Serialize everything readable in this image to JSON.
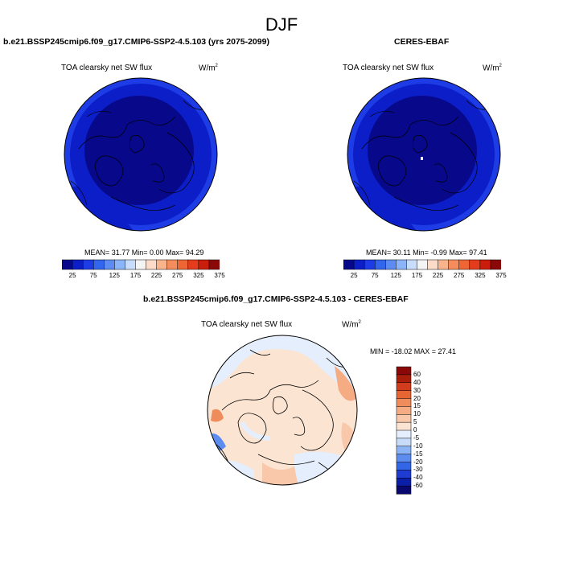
{
  "figure": {
    "title": "DJF"
  },
  "palettes": {
    "absolute": [
      "#08088a",
      "#0b1ec8",
      "#1e3ce6",
      "#3366ee",
      "#5c8cf2",
      "#8cb4f8",
      "#c8dcfc",
      "#f4f4f4",
      "#fcdcc8",
      "#f9b48c",
      "#f58c5c",
      "#ee6633",
      "#e63c1e",
      "#c81e0b",
      "#8a0808"
    ],
    "difference": [
      "#08086e",
      "#0b1ea8",
      "#1e3cd2",
      "#3366e6",
      "#5c8cef",
      "#8cb4f5",
      "#c8dcf9",
      "#e4eefc",
      "#fce4d2",
      "#f9c8aa",
      "#f5ac82",
      "#ef8c5c",
      "#e66633",
      "#d23c1e",
      "#a81e0b",
      "#8a0808"
    ]
  },
  "panels": [
    {
      "id": "model",
      "title": "b.e21.BSSP245cmip6.f09_g17.CMIP6-SSP2-4.5.103 (yrs 2075-2099)",
      "variable": "TOA clearsky net SW flux",
      "units_base": "W/m",
      "units_exp": "2",
      "stats_text": "MEAN= 31.77  Min=  0.00  Max= 94.29",
      "colorbar_ticks": [
        "25",
        "75",
        "125",
        "175",
        "225",
        "275",
        "325",
        "375"
      ]
    },
    {
      "id": "obs",
      "title": "CERES-EBAF",
      "variable": "TOA clearsky net SW flux",
      "units_base": "W/m",
      "units_exp": "2",
      "stats_text": "MEAN= 30.11  Min= -0.99  Max= 97.41",
      "colorbar_ticks": [
        "25",
        "75",
        "125",
        "175",
        "225",
        "275",
        "325",
        "375"
      ]
    },
    {
      "id": "diff",
      "title": "b.e21.BSSP245cmip6.f09_g17.CMIP6-SSP2-4.5.103 - CERES-EBAF",
      "variable": "TOA clearsky net SW flux",
      "units_base": "W/m",
      "units_exp": "2",
      "stats_text": "MIN = -18.02 MAX =  27.41",
      "colorbar_ticks": [
        "60",
        "40",
        "30",
        "20",
        "15",
        "10",
        "5",
        "0",
        "-5",
        "-10",
        "-15",
        "-20",
        "-30",
        "-40",
        "-60"
      ]
    }
  ],
  "chart_data": [
    {
      "type": "heatmap",
      "title": "TOA clearsky net SW flux",
      "projection": "north polar stereographic",
      "units": "W/m^2",
      "mean": 31.77,
      "min": 0.0,
      "max": 94.29,
      "levels": [
        25,
        50,
        75,
        100,
        125,
        150,
        175,
        200,
        225,
        250,
        275,
        300,
        325,
        350,
        375
      ]
    },
    {
      "type": "heatmap",
      "title": "TOA clearsky net SW flux",
      "projection": "north polar stereographic",
      "units": "W/m^2",
      "mean": 30.11,
      "min": -0.99,
      "max": 97.41,
      "levels": [
        25,
        50,
        75,
        100,
        125,
        150,
        175,
        200,
        225,
        250,
        275,
        300,
        325,
        350,
        375
      ]
    },
    {
      "type": "heatmap",
      "title": "TOA clearsky net SW flux",
      "projection": "north polar stereographic",
      "units": "W/m^2",
      "min": -18.02,
      "max": 27.41,
      "levels": [
        -60,
        -40,
        -30,
        -20,
        -15,
        -10,
        -5,
        0,
        5,
        10,
        15,
        20,
        30,
        40,
        60
      ]
    }
  ]
}
